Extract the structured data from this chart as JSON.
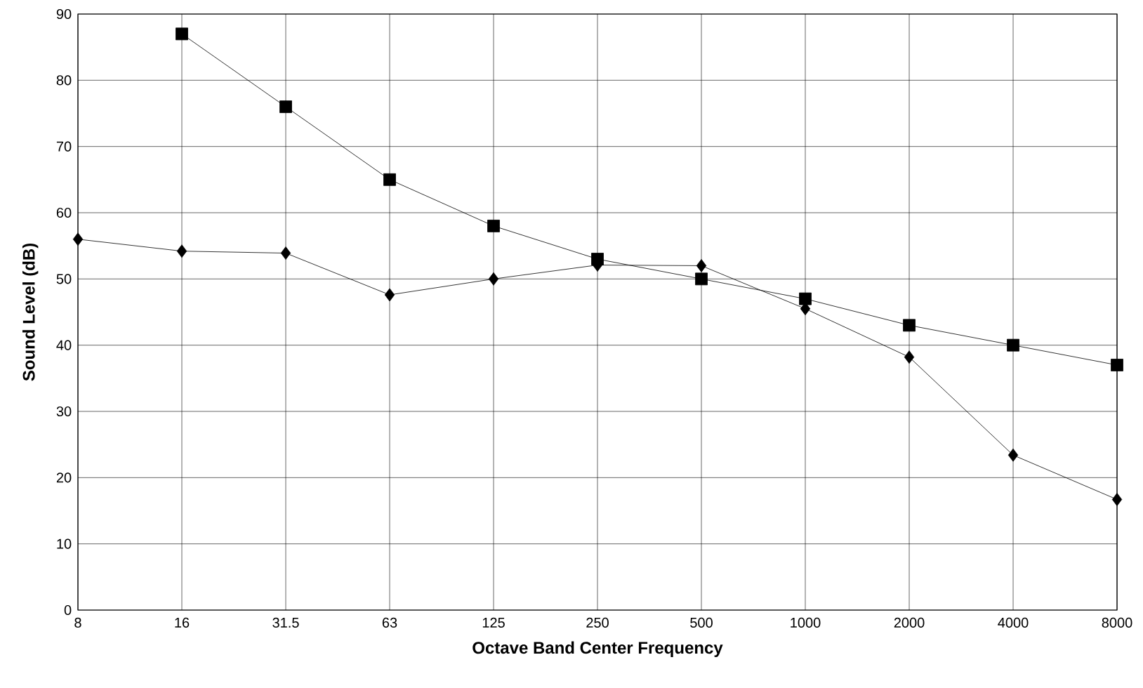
{
  "chart_data": {
    "type": "line",
    "xlabel": "Octave Band Center Frequency",
    "ylabel": "Sound Level (dB)",
    "categories": [
      "8",
      "16",
      "31.5",
      "63",
      "125",
      "250",
      "500",
      "1000",
      "2000",
      "4000",
      "8000"
    ],
    "series": [
      {
        "color": "#000000",
        "marker": "square",
        "values": [
          null,
          87,
          76,
          65,
          58,
          53,
          50,
          47,
          43,
          40,
          37
        ]
      },
      {
        "color": "#000000",
        "marker": "diamond",
        "values": [
          56,
          54.2,
          53.9,
          47.6,
          50,
          52.1,
          52,
          45.5,
          38.2,
          23.4,
          16.7
        ]
      }
    ],
    "ylim": [
      0,
      90
    ],
    "yticks": [
      0,
      10,
      20,
      30,
      40,
      50,
      60,
      70,
      80,
      90
    ],
    "grid": true,
    "line_style": "solid"
  }
}
